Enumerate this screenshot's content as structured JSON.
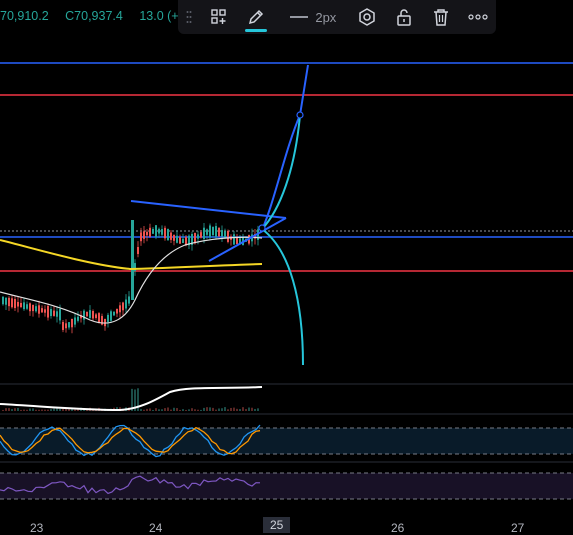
{
  "ohlc": {
    "close_prev_label": "70,910.2",
    "close_label": "C70,937.4",
    "change_label": "13.0 (+"
  },
  "toolbar": {
    "icons": [
      "template-icon",
      "pencil-icon",
      "line-style-icon",
      "settings-icon",
      "lock-icon",
      "trash-icon",
      "more-icon"
    ],
    "line_width_label": "2px",
    "accent_color": "#2962ff",
    "pencil_underline_color": "#26c6da"
  },
  "xaxis": {
    "ticks": [
      "23",
      "24",
      "25",
      "26",
      "27"
    ],
    "active_tick": "25"
  },
  "colors": {
    "horizontal_blue": "#2962ff",
    "horizontal_red": "#f23645",
    "ma_yellow": "#f5d726",
    "curve_cyan": "#26c6da",
    "up_candle": "#26a69a",
    "down_candle": "#ef5350",
    "rsi_purple": "#7e57c2",
    "stoch_orange": "#ff9800",
    "stoch_blue": "#2196f3"
  }
}
